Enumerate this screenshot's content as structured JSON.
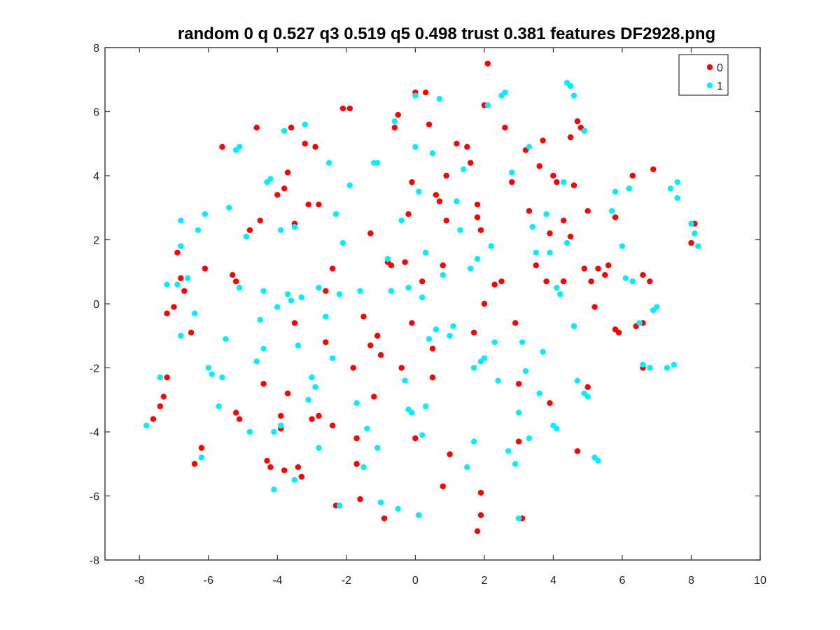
{
  "chart_data": {
    "type": "scatter",
    "title": "random 0 q 0.527 q3 0.519 q5 0.498 trust 0.381 features DF2928.png",
    "xlabel": "",
    "ylabel": "",
    "xlim": [
      -9,
      10
    ],
    "ylim": [
      -8,
      8
    ],
    "xticks": [
      -8,
      -6,
      -4,
      -2,
      0,
      2,
      4,
      6,
      8,
      10
    ],
    "yticks": [
      -8,
      -6,
      -4,
      -2,
      0,
      2,
      4,
      6,
      8
    ],
    "grid": false,
    "legend_position": "top-right",
    "series": [
      {
        "name": "0",
        "color": "#ff0000",
        "points": [
          [
            -7.6,
            -3.6
          ],
          [
            -7.4,
            -3.2
          ],
          [
            -7.3,
            -2.9
          ],
          [
            -7.2,
            -2.3
          ],
          [
            -7.2,
            -0.3
          ],
          [
            -7.0,
            -0.1
          ],
          [
            -6.9,
            1.6
          ],
          [
            -6.8,
            0.8
          ],
          [
            -6.7,
            0.4
          ],
          [
            -6.5,
            -0.9
          ],
          [
            -6.4,
            -5.0
          ],
          [
            -6.2,
            -4.5
          ],
          [
            -6.1,
            1.1
          ],
          [
            -5.6,
            4.9
          ],
          [
            -5.3,
            0.9
          ],
          [
            -5.2,
            0.7
          ],
          [
            -5.2,
            -3.4
          ],
          [
            -5.1,
            -3.6
          ],
          [
            -4.8,
            2.3
          ],
          [
            -4.6,
            5.5
          ],
          [
            -4.5,
            2.6
          ],
          [
            -4.4,
            -2.5
          ],
          [
            -4.3,
            -4.9
          ],
          [
            -4.2,
            -5.1
          ],
          [
            -4.0,
            3.4
          ],
          [
            -3.9,
            -3.5
          ],
          [
            -3.9,
            -3.9
          ],
          [
            -3.8,
            3.6
          ],
          [
            -3.8,
            -5.2
          ],
          [
            -3.7,
            4.1
          ],
          [
            -3.7,
            -2.8
          ],
          [
            -3.6,
            5.5
          ],
          [
            -3.5,
            -0.6
          ],
          [
            -3.5,
            2.5
          ],
          [
            -3.4,
            -5.1
          ],
          [
            -3.3,
            -5.4
          ],
          [
            -3.2,
            5.0
          ],
          [
            -3.1,
            3.1
          ],
          [
            -3.0,
            -3.6
          ],
          [
            -2.9,
            4.9
          ],
          [
            -2.8,
            -3.5
          ],
          [
            -2.8,
            3.1
          ],
          [
            -2.6,
            -1.2
          ],
          [
            -2.6,
            0.4
          ],
          [
            -2.4,
            1.1
          ],
          [
            -2.4,
            -3.8
          ],
          [
            -2.3,
            -6.3
          ],
          [
            -2.1,
            6.1
          ],
          [
            -1.9,
            6.1
          ],
          [
            -1.8,
            -2.0
          ],
          [
            -1.7,
            -4.2
          ],
          [
            -1.7,
            -5.0
          ],
          [
            -1.6,
            -6.1
          ],
          [
            -1.5,
            -0.4
          ],
          [
            -1.3,
            2.2
          ],
          [
            -1.3,
            -1.3
          ],
          [
            -1.2,
            -2.9
          ],
          [
            -1.1,
            -1.0
          ],
          [
            -1.0,
            -1.6
          ],
          [
            -0.9,
            -6.7
          ],
          [
            -0.8,
            1.3
          ],
          [
            -0.7,
            1.2
          ],
          [
            -0.6,
            5.5
          ],
          [
            -0.5,
            5.9
          ],
          [
            -0.4,
            -2.0
          ],
          [
            -0.3,
            1.3
          ],
          [
            -0.2,
            2.8
          ],
          [
            -0.1,
            3.8
          ],
          [
            -0.1,
            -0.6
          ],
          [
            0.0,
            -4.2
          ],
          [
            0.0,
            6.6
          ],
          [
            0.1,
            -6.6
          ],
          [
            0.2,
            0.7
          ],
          [
            0.3,
            6.6
          ],
          [
            0.4,
            5.6
          ],
          [
            0.5,
            -2.3
          ],
          [
            0.5,
            -1.4
          ],
          [
            0.6,
            3.4
          ],
          [
            0.7,
            3.2
          ],
          [
            0.8,
            1.2
          ],
          [
            0.8,
            -5.7
          ],
          [
            0.9,
            4.0
          ],
          [
            0.9,
            2.6
          ],
          [
            1.0,
            -4.7
          ],
          [
            1.2,
            5.0
          ],
          [
            1.5,
            4.9
          ],
          [
            1.6,
            4.4
          ],
          [
            1.7,
            -0.9
          ],
          [
            1.8,
            3.1
          ],
          [
            1.8,
            2.7
          ],
          [
            1.9,
            2.3
          ],
          [
            1.9,
            -5.9
          ],
          [
            1.9,
            -6.6
          ],
          [
            1.8,
            -7.1
          ],
          [
            2.0,
            6.2
          ],
          [
            2.0,
            0.0
          ],
          [
            2.1,
            7.5
          ],
          [
            2.3,
            0.6
          ],
          [
            2.5,
            0.7
          ],
          [
            2.6,
            5.5
          ],
          [
            2.8,
            3.8
          ],
          [
            2.9,
            -0.6
          ],
          [
            3.0,
            -2.5
          ],
          [
            3.0,
            -4.3
          ],
          [
            3.1,
            -6.7
          ],
          [
            3.2,
            4.8
          ],
          [
            3.3,
            2.9
          ],
          [
            3.5,
            1.2
          ],
          [
            3.6,
            4.3
          ],
          [
            3.7,
            5.1
          ],
          [
            3.8,
            0.7
          ],
          [
            3.9,
            2.2
          ],
          [
            3.9,
            -3.1
          ],
          [
            4.0,
            4.0
          ],
          [
            4.1,
            3.8
          ],
          [
            4.3,
            0.7
          ],
          [
            4.3,
            2.6
          ],
          [
            4.5,
            2.1
          ],
          [
            4.5,
            5.2
          ],
          [
            4.6,
            3.7
          ],
          [
            4.7,
            5.7
          ],
          [
            4.7,
            -4.6
          ],
          [
            4.8,
            5.5
          ],
          [
            4.9,
            1.1
          ],
          [
            5.0,
            2.9
          ],
          [
            5.0,
            -2.6
          ],
          [
            5.1,
            0.7
          ],
          [
            5.2,
            -0.1
          ],
          [
            5.3,
            1.1
          ],
          [
            5.5,
            0.9
          ],
          [
            5.6,
            1.2
          ],
          [
            5.8,
            -0.8
          ],
          [
            5.8,
            2.7
          ],
          [
            5.9,
            -0.9
          ],
          [
            6.3,
            4.0
          ],
          [
            6.4,
            -0.7
          ],
          [
            6.6,
            -0.6
          ],
          [
            6.6,
            0.9
          ],
          [
            6.6,
            -2.0
          ],
          [
            6.8,
            0.7
          ],
          [
            6.9,
            4.2
          ],
          [
            8.0,
            1.9
          ],
          [
            8.1,
            2.5
          ]
        ]
      },
      {
        "name": "1",
        "color": "#00eeff",
        "points": [
          [
            -7.8,
            -3.8
          ],
          [
            -7.4,
            -2.3
          ],
          [
            -7.2,
            0.6
          ],
          [
            -6.9,
            0.6
          ],
          [
            -6.8,
            2.6
          ],
          [
            -6.8,
            1.8
          ],
          [
            -6.8,
            -1.0
          ],
          [
            -6.6,
            0.8
          ],
          [
            -6.4,
            -0.3
          ],
          [
            -6.3,
            2.3
          ],
          [
            -6.2,
            -4.8
          ],
          [
            -6.1,
            2.8
          ],
          [
            -6.0,
            -2.0
          ],
          [
            -5.9,
            -2.2
          ],
          [
            -5.7,
            -3.2
          ],
          [
            -5.6,
            -2.3
          ],
          [
            -5.5,
            -1.1
          ],
          [
            -5.4,
            3.0
          ],
          [
            -5.2,
            4.8
          ],
          [
            -5.1,
            4.9
          ],
          [
            -5.1,
            0.5
          ],
          [
            -4.9,
            2.1
          ],
          [
            -4.8,
            -4.0
          ],
          [
            -4.6,
            -1.8
          ],
          [
            -4.5,
            -0.5
          ],
          [
            -4.4,
            0.4
          ],
          [
            -4.4,
            -1.4
          ],
          [
            -4.3,
            3.8
          ],
          [
            -4.2,
            3.9
          ],
          [
            -4.1,
            -4.0
          ],
          [
            -4.1,
            -5.8
          ],
          [
            -4.0,
            -0.1
          ],
          [
            -3.9,
            -3.8
          ],
          [
            -3.9,
            2.3
          ],
          [
            -3.8,
            5.4
          ],
          [
            -3.7,
            0.3
          ],
          [
            -3.6,
            0.1
          ],
          [
            -3.5,
            -5.5
          ],
          [
            -3.5,
            2.4
          ],
          [
            -3.4,
            -1.3
          ],
          [
            -3.3,
            0.2
          ],
          [
            -3.2,
            5.6
          ],
          [
            -3.1,
            -3.0
          ],
          [
            -3.0,
            -2.3
          ],
          [
            -2.9,
            -2.6
          ],
          [
            -2.8,
            0.5
          ],
          [
            -2.8,
            -4.5
          ],
          [
            -2.6,
            -0.4
          ],
          [
            -2.5,
            4.4
          ],
          [
            -2.4,
            -1.7
          ],
          [
            -2.3,
            2.8
          ],
          [
            -2.2,
            0.3
          ],
          [
            -2.2,
            -6.3
          ],
          [
            -2.1,
            1.9
          ],
          [
            -1.9,
            3.7
          ],
          [
            -1.7,
            -3.1
          ],
          [
            -1.6,
            0.4
          ],
          [
            -1.5,
            -5.1
          ],
          [
            -1.4,
            -3.9
          ],
          [
            -1.2,
            4.4
          ],
          [
            -1.1,
            4.4
          ],
          [
            -1.1,
            -4.5
          ],
          [
            -1.0,
            -6.2
          ],
          [
            -0.8,
            1.4
          ],
          [
            -0.7,
            0.4
          ],
          [
            -0.6,
            5.7
          ],
          [
            -0.5,
            -6.4
          ],
          [
            -0.4,
            2.6
          ],
          [
            -0.3,
            -2.4
          ],
          [
            -0.2,
            -3.3
          ],
          [
            -0.2,
            0.5
          ],
          [
            -0.1,
            -3.4
          ],
          [
            0.0,
            4.9
          ],
          [
            0.0,
            6.5
          ],
          [
            0.1,
            3.5
          ],
          [
            0.1,
            -6.6
          ],
          [
            0.2,
            0.2
          ],
          [
            0.2,
            -4.1
          ],
          [
            0.3,
            -3.2
          ],
          [
            0.3,
            1.6
          ],
          [
            0.4,
            -1.1
          ],
          [
            0.5,
            4.7
          ],
          [
            0.6,
            -0.8
          ],
          [
            0.7,
            6.4
          ],
          [
            0.8,
            0.9
          ],
          [
            1.0,
            -1.0
          ],
          [
            1.1,
            -0.7
          ],
          [
            1.2,
            3.2
          ],
          [
            1.3,
            2.3
          ],
          [
            1.4,
            4.2
          ],
          [
            1.5,
            -5.1
          ],
          [
            1.6,
            1.1
          ],
          [
            1.7,
            -2.0
          ],
          [
            1.7,
            -4.3
          ],
          [
            1.8,
            1.4
          ],
          [
            1.9,
            -1.8
          ],
          [
            2.0,
            -1.7
          ],
          [
            2.1,
            6.2
          ],
          [
            2.2,
            1.8
          ],
          [
            2.3,
            -1.2
          ],
          [
            2.4,
            -2.4
          ],
          [
            2.5,
            6.5
          ],
          [
            2.6,
            6.6
          ],
          [
            2.7,
            -4.6
          ],
          [
            2.8,
            4.1
          ],
          [
            2.9,
            -5.0
          ],
          [
            3.0,
            -3.4
          ],
          [
            3.0,
            -6.7
          ],
          [
            3.1,
            -1.2
          ],
          [
            3.2,
            -2.1
          ],
          [
            3.3,
            -4.2
          ],
          [
            3.3,
            4.9
          ],
          [
            3.4,
            2.4
          ],
          [
            3.5,
            1.6
          ],
          [
            3.6,
            -2.8
          ],
          [
            3.7,
            -1.5
          ],
          [
            3.8,
            2.8
          ],
          [
            3.9,
            1.6
          ],
          [
            4.0,
            -3.8
          ],
          [
            4.1,
            -3.9
          ],
          [
            4.1,
            0.5
          ],
          [
            4.2,
            0.3
          ],
          [
            4.3,
            3.8
          ],
          [
            4.4,
            1.9
          ],
          [
            4.4,
            6.9
          ],
          [
            4.5,
            6.8
          ],
          [
            4.6,
            -0.7
          ],
          [
            4.6,
            6.5
          ],
          [
            4.7,
            -2.4
          ],
          [
            4.9,
            5.4
          ],
          [
            4.9,
            -2.8
          ],
          [
            5.0,
            -2.9
          ],
          [
            5.2,
            -4.8
          ],
          [
            5.3,
            -4.9
          ],
          [
            5.7,
            2.9
          ],
          [
            5.8,
            3.5
          ],
          [
            6.0,
            1.8
          ],
          [
            6.1,
            0.8
          ],
          [
            6.2,
            3.6
          ],
          [
            6.3,
            0.7
          ],
          [
            6.5,
            -0.6
          ],
          [
            6.6,
            -1.9
          ],
          [
            6.8,
            -2.0
          ],
          [
            6.9,
            -0.2
          ],
          [
            7.0,
            -0.1
          ],
          [
            7.3,
            -2.0
          ],
          [
            7.5,
            -1.9
          ],
          [
            7.4,
            3.6
          ],
          [
            7.6,
            3.8
          ],
          [
            7.6,
            3.3
          ],
          [
            8.0,
            2.5
          ],
          [
            8.1,
            2.2
          ],
          [
            8.2,
            1.8
          ]
        ]
      }
    ]
  }
}
